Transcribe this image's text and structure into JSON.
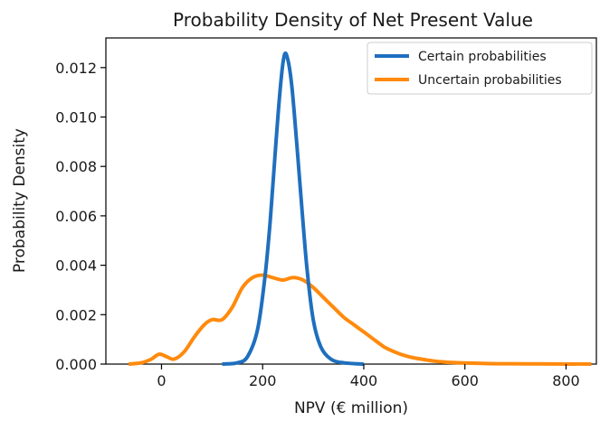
{
  "chart_data": {
    "type": "line",
    "title": "Probability Density of Net Present Value",
    "xlabel": "NPV (€ million)",
    "ylabel": "Probability Density",
    "xlim": [
      -110,
      860
    ],
    "ylim": [
      0,
      0.0132
    ],
    "xticks": [
      0,
      200,
      400,
      600,
      800
    ],
    "xtick_labels": [
      "0",
      "200",
      "400",
      "600",
      "800"
    ],
    "yticks": [
      0,
      0.002,
      0.004,
      0.006,
      0.008,
      0.01,
      0.012
    ],
    "ytick_labels": [
      "0.000",
      "0.002",
      "0.004",
      "0.006",
      "0.008",
      "0.010",
      "0.012"
    ],
    "grid": false,
    "legend_position": "top-right",
    "series": [
      {
        "name": "Certain probabilities",
        "color": "#1f6fbf",
        "points": [
          [
            120,
            0
          ],
          [
            150,
            5e-05
          ],
          [
            170,
            0.0003
          ],
          [
            190,
            0.0014
          ],
          [
            205,
            0.0036
          ],
          [
            215,
            0.0058
          ],
          [
            225,
            0.0086
          ],
          [
            235,
            0.0112
          ],
          [
            243,
            0.0125
          ],
          [
            250,
            0.0123
          ],
          [
            258,
            0.0112
          ],
          [
            268,
            0.0088
          ],
          [
            278,
            0.0062
          ],
          [
            288,
            0.0038
          ],
          [
            300,
            0.0018
          ],
          [
            315,
            0.0007
          ],
          [
            335,
            0.0002
          ],
          [
            360,
            5e-05
          ],
          [
            400,
            0
          ]
        ]
      },
      {
        "name": "Uncertain probabilities",
        "color": "#ff8a0d",
        "points": [
          [
            -65,
            0
          ],
          [
            -40,
            5e-05
          ],
          [
            -20,
            0.0002
          ],
          [
            -5,
            0.0004
          ],
          [
            10,
            0.0003
          ],
          [
            25,
            0.0002
          ],
          [
            45,
            0.0005
          ],
          [
            65,
            0.0011
          ],
          [
            85,
            0.0016
          ],
          [
            100,
            0.0018
          ],
          [
            120,
            0.0018
          ],
          [
            140,
            0.0023
          ],
          [
            160,
            0.0031
          ],
          [
            180,
            0.0035
          ],
          [
            200,
            0.0036
          ],
          [
            220,
            0.0035
          ],
          [
            240,
            0.0034
          ],
          [
            260,
            0.0035
          ],
          [
            280,
            0.0034
          ],
          [
            300,
            0.0031
          ],
          [
            320,
            0.0027
          ],
          [
            340,
            0.0023
          ],
          [
            360,
            0.0019
          ],
          [
            380,
            0.0016
          ],
          [
            400,
            0.0013
          ],
          [
            420,
            0.001
          ],
          [
            440,
            0.0007
          ],
          [
            460,
            0.0005
          ],
          [
            480,
            0.00035
          ],
          [
            500,
            0.00025
          ],
          [
            540,
            0.00012
          ],
          [
            580,
            6e-05
          ],
          [
            650,
            2e-05
          ],
          [
            720,
            1e-05
          ],
          [
            850,
            0
          ]
        ]
      }
    ]
  }
}
